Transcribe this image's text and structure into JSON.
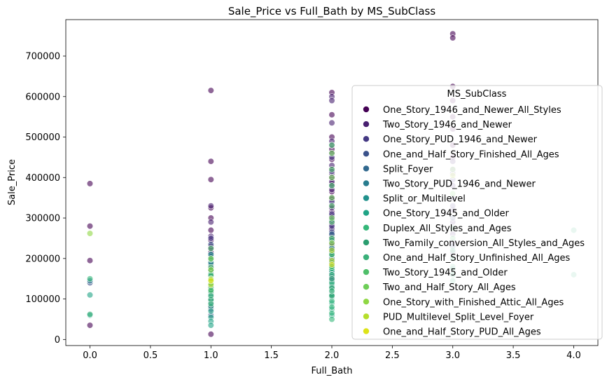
{
  "chart_data": {
    "type": "scatter",
    "title": "Sale_Price vs Full_Bath by MS_SubClass",
    "xlabel": "Full_Bath",
    "ylabel": "Sale_Price",
    "xlim": [
      -0.2,
      4.2
    ],
    "ylim": [
      -15000,
      790000
    ],
    "xticks": [
      0.0,
      0.5,
      1.0,
      1.5,
      2.0,
      2.5,
      3.0,
      3.5,
      4.0
    ],
    "xtick_labels": [
      "0.0",
      "0.5",
      "1.0",
      "1.5",
      "2.0",
      "2.5",
      "3.0",
      "3.5",
      "4.0"
    ],
    "yticks": [
      0,
      100000,
      200000,
      300000,
      400000,
      500000,
      600000,
      700000
    ],
    "ytick_labels": [
      "0",
      "100000",
      "200000",
      "300000",
      "400000",
      "500000",
      "600000",
      "700000"
    ],
    "grid": false,
    "legend": {
      "title": "MS_SubClass",
      "placement": "right"
    },
    "series": [
      {
        "name": "One_Story_1946_and_Newer_All_Styles",
        "color": "#440154",
        "points": [
          [
            0,
            385000
          ],
          [
            0,
            280000
          ],
          [
            0,
            195000
          ],
          [
            0,
            35000
          ],
          [
            1,
            615000
          ],
          [
            1,
            440000
          ],
          [
            1,
            395000
          ],
          [
            1,
            325000
          ],
          [
            1,
            300000
          ],
          [
            1,
            270000
          ],
          [
            1,
            245000
          ],
          [
            1,
            230000
          ],
          [
            1,
            215000
          ],
          [
            1,
            200000
          ],
          [
            1,
            185000
          ],
          [
            1,
            175000
          ],
          [
            1,
            165000
          ],
          [
            1,
            150000
          ],
          [
            1,
            140000
          ],
          [
            1,
            130000
          ],
          [
            1,
            120000
          ],
          [
            1,
            110000
          ],
          [
            1,
            100000
          ],
          [
            1,
            90000
          ],
          [
            1,
            80000
          ],
          [
            1,
            13000
          ],
          [
            2,
            610000
          ],
          [
            2,
            555000
          ],
          [
            2,
            500000
          ],
          [
            2,
            470000
          ],
          [
            2,
            445000
          ],
          [
            2,
            420000
          ],
          [
            2,
            400000
          ],
          [
            2,
            385000
          ],
          [
            2,
            365000
          ],
          [
            2,
            345000
          ],
          [
            2,
            330000
          ],
          [
            2,
            315000
          ],
          [
            2,
            300000
          ],
          [
            2,
            285000
          ],
          [
            2,
            270000
          ],
          [
            2,
            255000
          ],
          [
            2,
            240000
          ],
          [
            2,
            225000
          ],
          [
            2,
            210000
          ],
          [
            2,
            195000
          ],
          [
            2,
            180000
          ],
          [
            2,
            165000
          ],
          [
            2,
            150000
          ],
          [
            3,
            755000
          ],
          [
            3,
            745000
          ],
          [
            3,
            625000
          ],
          [
            3,
            590000
          ],
          [
            3,
            550000
          ],
          [
            3,
            520000
          ],
          [
            3,
            480000
          ],
          [
            3,
            450000
          ],
          [
            3,
            420000
          ]
        ]
      },
      {
        "name": "Two_Story_1946_and_Newer",
        "color": "#481f70",
        "points": [
          [
            1,
            330000
          ],
          [
            1,
            290000
          ],
          [
            1,
            255000
          ],
          [
            1,
            225000
          ],
          [
            1,
            195000
          ],
          [
            1,
            160000
          ],
          [
            1,
            125000
          ],
          [
            2,
            600000
          ],
          [
            2,
            590000
          ],
          [
            2,
            535000
          ],
          [
            2,
            490000
          ],
          [
            2,
            460000
          ],
          [
            2,
            430000
          ],
          [
            2,
            410000
          ],
          [
            2,
            390000
          ],
          [
            2,
            370000
          ],
          [
            2,
            350000
          ],
          [
            2,
            325000
          ],
          [
            2,
            305000
          ],
          [
            2,
            290000
          ],
          [
            2,
            275000
          ],
          [
            2,
            260000
          ],
          [
            2,
            245000
          ],
          [
            2,
            230000
          ],
          [
            2,
            215000
          ],
          [
            3,
            440000
          ],
          [
            3,
            410000
          ],
          [
            3,
            380000
          ],
          [
            3,
            350000
          ],
          [
            3,
            320000
          ],
          [
            3,
            290000
          ],
          [
            3,
            260000
          ],
          [
            3,
            240000
          ],
          [
            3,
            215000
          ]
        ]
      },
      {
        "name": "One_Story_PUD_1946_and_Newer",
        "color": "#443983",
        "points": [
          [
            1,
            250000
          ],
          [
            1,
            210000
          ],
          [
            1,
            190000
          ],
          [
            1,
            170000
          ],
          [
            2,
            480000
          ],
          [
            2,
            450000
          ],
          [
            2,
            415000
          ],
          [
            2,
            380000
          ],
          [
            2,
            340000
          ],
          [
            2,
            310000
          ],
          [
            2,
            280000
          ],
          [
            2,
            250000
          ],
          [
            2,
            220000
          ],
          [
            2,
            200000
          ],
          [
            3,
            395000
          ],
          [
            3,
            330000
          ],
          [
            3,
            275000
          ]
        ]
      },
      {
        "name": "One_and_Half_Story_Finished_All_Ages",
        "color": "#3b528b",
        "points": [
          [
            0,
            140000
          ],
          [
            1,
            235000
          ],
          [
            1,
            205000
          ],
          [
            1,
            180000
          ],
          [
            1,
            155000
          ],
          [
            1,
            135000
          ],
          [
            1,
            115000
          ],
          [
            1,
            95000
          ],
          [
            1,
            75000
          ],
          [
            1,
            60000
          ],
          [
            2,
            295000
          ],
          [
            2,
            265000
          ],
          [
            2,
            235000
          ],
          [
            2,
            205000
          ],
          [
            2,
            185000
          ],
          [
            2,
            160000
          ],
          [
            2,
            140000
          ],
          [
            3,
            300000
          ],
          [
            3,
            230000
          ]
        ]
      },
      {
        "name": "Split_Foyer",
        "color": "#31688e",
        "points": [
          [
            1,
            185000
          ],
          [
            1,
            170000
          ],
          [
            1,
            155000
          ],
          [
            1,
            145000
          ],
          [
            1,
            135000
          ],
          [
            2,
            260000
          ],
          [
            2,
            215000
          ],
          [
            2,
            190000
          ],
          [
            2,
            170000
          ],
          [
            2,
            155000
          ]
        ]
      },
      {
        "name": "Two_Story_PUD_1946_and_Newer",
        "color": "#287c8e",
        "points": [
          [
            0,
            145000
          ],
          [
            1,
            148000
          ],
          [
            1,
            138000
          ],
          [
            1,
            128000
          ],
          [
            1,
            105000
          ],
          [
            2,
            200000
          ],
          [
            2,
            180000
          ],
          [
            2,
            165000
          ],
          [
            2,
            145000
          ],
          [
            2,
            130000
          ],
          [
            2,
            115000
          ]
        ]
      },
      {
        "name": "Split_or_Multilevel",
        "color": "#21918c",
        "points": [
          [
            1,
            210000
          ],
          [
            1,
            190000
          ],
          [
            1,
            172000
          ],
          [
            1,
            158000
          ],
          [
            1,
            143000
          ],
          [
            2,
            245000
          ],
          [
            2,
            225000
          ],
          [
            2,
            208000
          ],
          [
            2,
            190000
          ]
        ]
      },
      {
        "name": "One_Story_1945_and_Older",
        "color": "#20a486",
        "points": [
          [
            0,
            110000
          ],
          [
            0,
            60000
          ],
          [
            1,
            162000
          ],
          [
            1,
            132000
          ],
          [
            1,
            112000
          ],
          [
            1,
            92000
          ],
          [
            1,
            82000
          ],
          [
            1,
            70000
          ],
          [
            1,
            55000
          ],
          [
            1,
            45000
          ],
          [
            1,
            35000
          ],
          [
            2,
            170000
          ],
          [
            2,
            135000
          ],
          [
            2,
            105000
          ],
          [
            2,
            90000
          ],
          [
            2,
            75000
          ],
          [
            2,
            60000
          ]
        ]
      },
      {
        "name": "Duplex_All_Styles_and_Ages",
        "color": "#35b779",
        "points": [
          [
            0,
            150000
          ],
          [
            1,
            150000
          ],
          [
            1,
            120000
          ],
          [
            1,
            100000
          ],
          [
            2,
            175000
          ],
          [
            2,
            160000
          ],
          [
            2,
            140000
          ],
          [
            2,
            125000
          ],
          [
            2,
            110000
          ],
          [
            2,
            95000
          ],
          [
            2,
            80000
          ],
          [
            2,
            65000
          ],
          [
            2,
            50000
          ],
          [
            3,
            220000
          ],
          [
            3,
            200000
          ],
          [
            3,
            180000
          ],
          [
            3,
            160000
          ],
          [
            3,
            145000
          ],
          [
            4,
            270000
          ],
          [
            4,
            160000
          ]
        ]
      },
      {
        "name": "Two_Family_conversion_All_Styles_and_Ages",
        "color": "#2a9d6f",
        "points": [
          [
            1,
            140000
          ],
          [
            1,
            118000
          ],
          [
            1,
            98000
          ],
          [
            2,
            150000
          ],
          [
            2,
            128000
          ],
          [
            2,
            108000
          ],
          [
            3,
            175000
          ]
        ]
      },
      {
        "name": "One_and_Half_Story_Unfinished_All_Ages",
        "color": "#3ab07a",
        "points": [
          [
            0,
            62000
          ],
          [
            1,
            128000
          ],
          [
            1,
            108000
          ],
          [
            1,
            88000
          ],
          [
            2,
            120000
          ]
        ]
      },
      {
        "name": "Two_Story_1945_and_Older",
        "color": "#4fbf6a",
        "points": [
          [
            1,
            225000
          ],
          [
            1,
            198000
          ],
          [
            1,
            178000
          ],
          [
            1,
            158000
          ],
          [
            1,
            138000
          ],
          [
            1,
            122000
          ],
          [
            2,
            480000
          ],
          [
            2,
            420000
          ],
          [
            2,
            380000
          ],
          [
            2,
            330000
          ],
          [
            2,
            290000
          ],
          [
            2,
            250000
          ],
          [
            2,
            210000
          ],
          [
            2,
            180000
          ],
          [
            3,
            275000
          ],
          [
            3,
            250000
          ]
        ]
      },
      {
        "name": "Two_and_Half_Story_All_Ages",
        "color": "#6ece58",
        "points": [
          [
            1,
            200000
          ],
          [
            2,
            460000
          ],
          [
            2,
            400000
          ],
          [
            2,
            350000
          ],
          [
            2,
            300000
          ],
          [
            3,
            420000
          ],
          [
            3,
            360000
          ]
        ]
      },
      {
        "name": "One_Story_with_Finished_Attic_All_Ages",
        "color": "#8fd744",
        "points": [
          [
            0,
            262000
          ],
          [
            1,
            172000
          ],
          [
            1,
            150000
          ],
          [
            2,
            238000
          ]
        ]
      },
      {
        "name": "PUD_Multilevel_Split_Level_Foyer",
        "color": "#b5de2b",
        "points": [
          [
            1,
            148000
          ],
          [
            1,
            135000
          ],
          [
            2,
            220000
          ],
          [
            2,
            195000
          ],
          [
            3,
            405000
          ]
        ]
      },
      {
        "name": "One_and_Half_Story_PUD_All_Ages",
        "color": "#dde318",
        "points": [
          [
            1,
            145000
          ],
          [
            2,
            185000
          ]
        ]
      }
    ]
  }
}
